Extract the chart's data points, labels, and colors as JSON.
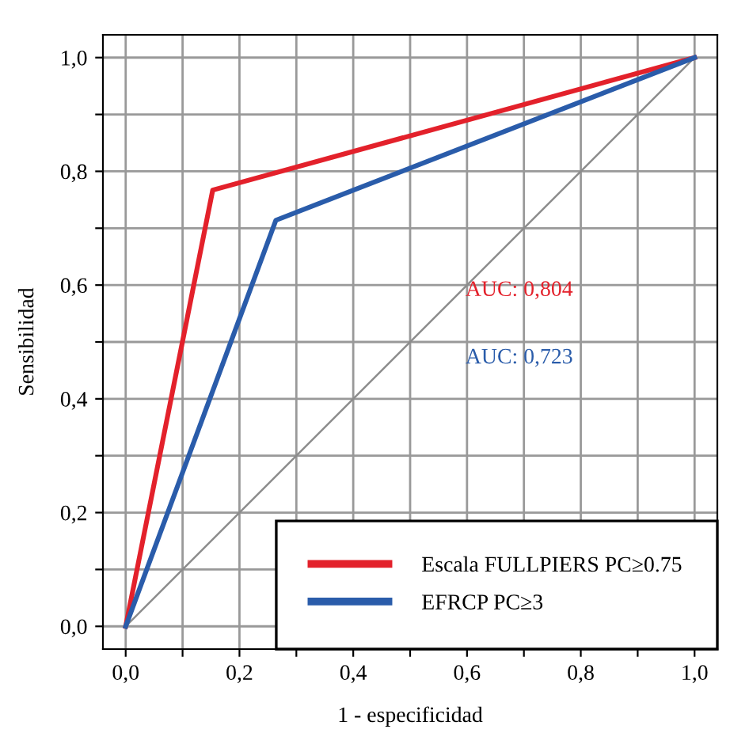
{
  "chart_data": {
    "type": "line",
    "xlabel": "1 - especificidad",
    "ylabel": "Sensibilidad",
    "series": [
      {
        "name": "Escala FULLPIERS PC≥0.75",
        "color": "#e3212b",
        "x": [
          0,
          0.153,
          1
        ],
        "values": [
          0,
          0.767,
          1
        ]
      },
      {
        "name": "EFRCP PC≥3",
        "color": "#2a5caa",
        "x": [
          0,
          0.264,
          1
        ],
        "values": [
          0,
          0.714,
          1
        ]
      },
      {
        "color": "#8c8c8c",
        "x": [
          0,
          1
        ],
        "values": [
          0,
          1
        ]
      }
    ],
    "annotations": [
      "AUC: 0,804",
      "AUC: 0,723"
    ],
    "xlim": [
      -0.04,
      1.04
    ],
    "ylim": [
      -0.04,
      1.04
    ],
    "xticks": [
      {
        "value": 0,
        "label": "0,0"
      },
      {
        "value": 0.1,
        "label": null
      },
      {
        "value": 0.2,
        "label": "0,2"
      },
      {
        "value": 0.3,
        "label": null
      },
      {
        "value": 0.4,
        "label": "0,4"
      },
      {
        "value": 0.5,
        "label": null
      },
      {
        "value": 0.6,
        "label": "0,6"
      },
      {
        "value": 0.7,
        "label": null
      },
      {
        "value": 0.8,
        "label": "0,8"
      },
      {
        "value": 0.9,
        "label": null
      },
      {
        "value": 1,
        "label": "1,0"
      }
    ],
    "yticks": [
      {
        "value": 0,
        "label": "0,0"
      },
      {
        "value": 0.1,
        "label": null
      },
      {
        "value": 0.2,
        "label": "0,2"
      },
      {
        "value": 0.3,
        "label": null
      },
      {
        "value": 0.4,
        "label": "0,4"
      },
      {
        "value": 0.5,
        "label": null
      },
      {
        "value": 0.6,
        "label": "0,6"
      },
      {
        "value": 0.7,
        "label": null
      },
      {
        "value": 0.8,
        "label": "0,8"
      },
      {
        "value": 0.9,
        "label": null
      },
      {
        "value": 1,
        "label": "1,0"
      }
    ],
    "grid": true,
    "legend": "bottom right",
    "marker": "none",
    "line_style": "solid"
  }
}
